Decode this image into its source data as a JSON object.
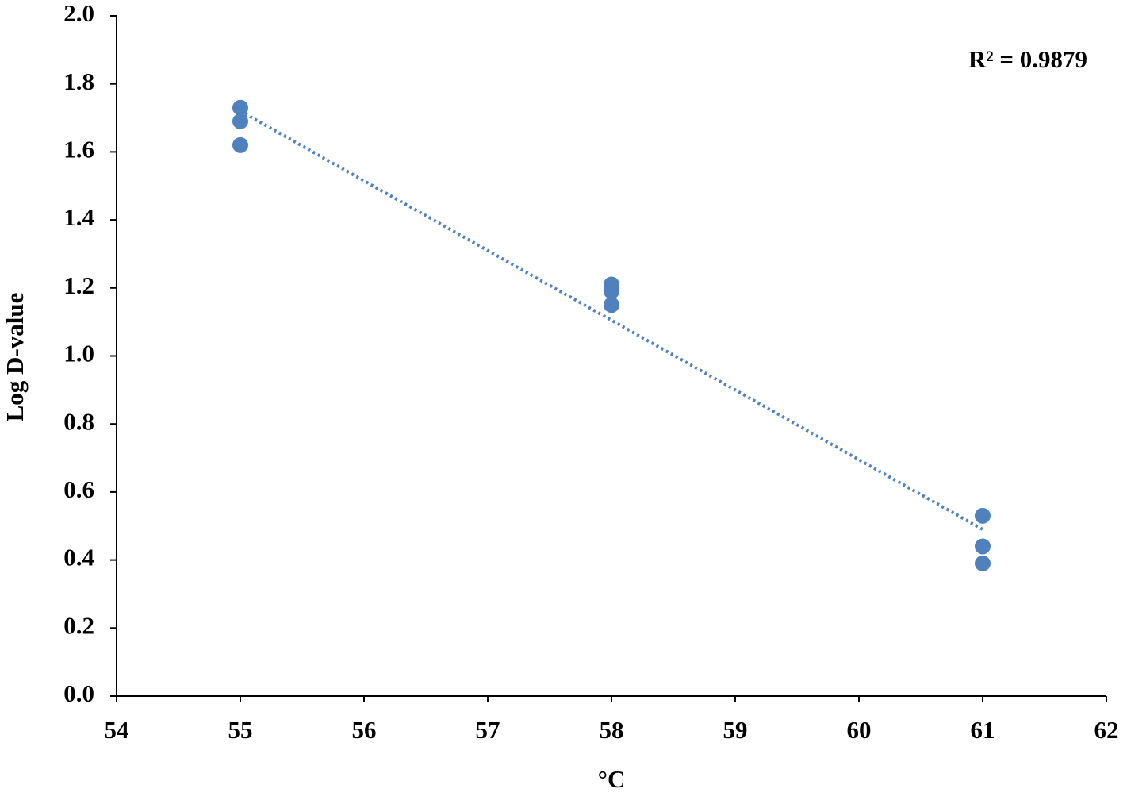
{
  "chart_data": {
    "type": "scatter",
    "x_label": "°C",
    "y_label": "Log D-value",
    "annotation": "R² = 0.9879",
    "series": [
      {
        "color": "#4f81bd",
        "x": [
          55,
          55,
          55,
          58,
          58,
          58,
          61,
          61,
          61
        ],
        "values": [
          1.73,
          1.69,
          1.62,
          1.21,
          1.19,
          1.15,
          0.53,
          0.44,
          0.39
        ]
      }
    ],
    "trendline": {
      "x": [
        55,
        61
      ],
      "values": [
        1.72,
        0.49
      ],
      "color": "#4f81bd"
    },
    "xlim": [
      54,
      62
    ],
    "xticks": [
      54,
      55,
      56,
      57,
      58,
      59,
      60,
      61,
      62
    ],
    "ylim": [
      0,
      2
    ],
    "yticks": [
      {
        "value": 0,
        "label": "0.0"
      },
      {
        "value": 0.2,
        "label": "0.2"
      },
      {
        "value": 0.4,
        "label": "0.4"
      },
      {
        "value": 0.6,
        "label": "0.6"
      },
      {
        "value": 0.8,
        "label": "0.8"
      },
      {
        "value": 1,
        "label": "1.0"
      },
      {
        "value": 1.2,
        "label": "1.2"
      },
      {
        "value": 1.4,
        "label": "1.4"
      },
      {
        "value": 1.6,
        "label": "1.6"
      },
      {
        "value": 1.8,
        "label": "1.8"
      },
      {
        "value": 2,
        "label": "2.0"
      }
    ]
  }
}
